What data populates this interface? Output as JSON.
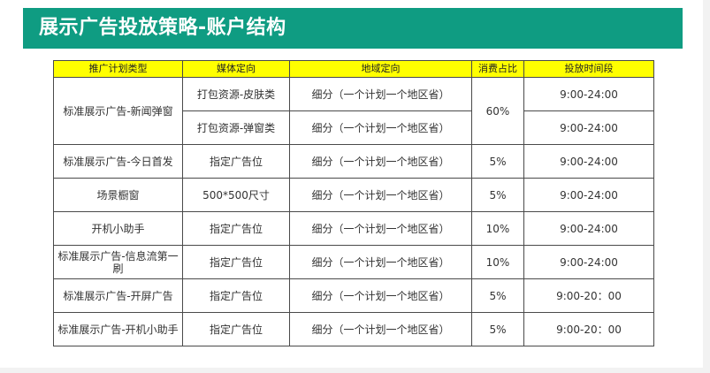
{
  "title": "展示广告投放策略-账户结构",
  "colors": {
    "banner": "#0f9c82",
    "header_bg": "#ffff00"
  },
  "table": {
    "headers": [
      "推广计划类型",
      "媒体定向",
      "地域定向",
      "消费占比",
      "投放时间段"
    ],
    "rows": [
      {
        "plan": "标准展示广告-新闻弹窗",
        "media": "打包资源-皮肤类",
        "region": "细分（一个计划一个地区省）",
        "share": "60%",
        "time": "9:00-24:00"
      },
      {
        "plan": "",
        "media": "打包资源-弹窗类",
        "region": "细分（一个计划一个地区省）",
        "share": "",
        "time": "9:00-24:00"
      },
      {
        "plan": "标准展示广告-今日首发",
        "media": "指定广告位",
        "region": "细分（一个计划一个地区省）",
        "share": "5%",
        "time": "9:00-24:00"
      },
      {
        "plan": "场景橱窗",
        "media": "500*500尺寸",
        "region": "细分（一个计划一个地区省）",
        "share": "5%",
        "time": "9:00-24:00"
      },
      {
        "plan": "开机小助手",
        "media": "指定广告位",
        "region": "细分（一个计划一个地区省）",
        "share": "10%",
        "time": "9:00-24:00"
      },
      {
        "plan": "标准展示广告-信息流第一刷",
        "media": "指定广告位",
        "region": "细分（一个计划一个地区省）",
        "share": "10%",
        "time": "9:00-24:00"
      },
      {
        "plan": "标准展示广告-开屏广告",
        "media": "指定广告位",
        "region": "细分（一个计划一个地区省）",
        "share": "5%",
        "time": "9:00-20：00"
      },
      {
        "plan": "标准展示广告-开机小助手",
        "media": "指定广告位",
        "region": "细分（一个计划一个地区省）",
        "share": "5%",
        "time": "9:00-20：00"
      }
    ]
  }
}
